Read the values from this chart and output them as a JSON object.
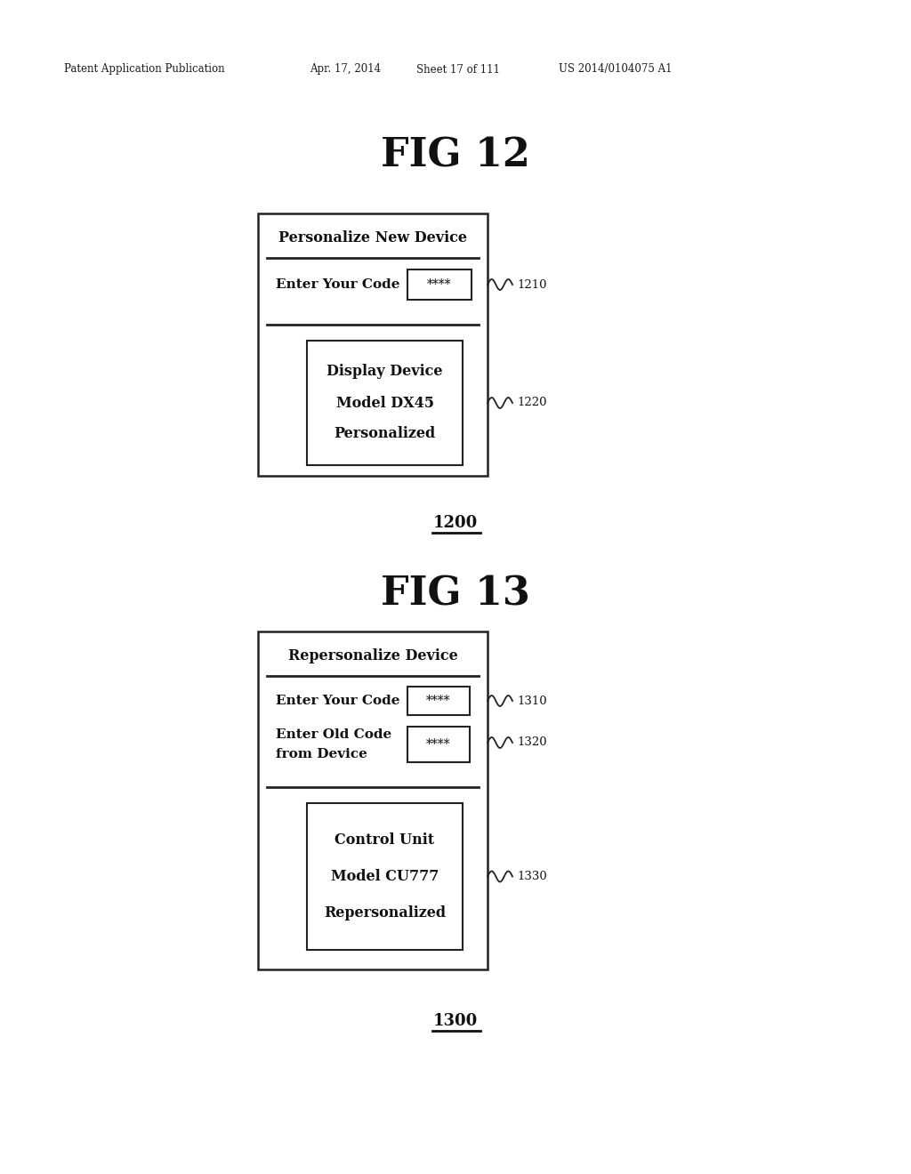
{
  "bg_color": "#ffffff",
  "header_text": "Patent Application Publication",
  "header_date": "Apr. 17, 2014",
  "header_sheet": "Sheet 17 of 111",
  "header_patent": "US 2014/0104075 A1",
  "fig12_title": "FIG 12",
  "fig12_label": "1200",
  "fig12_box_title": "Personalize New Device",
  "fig12_field1_label": "Enter Your Code",
  "fig12_field1_value": "****",
  "fig12_ref1": "1210",
  "fig12_inner_box_line1": "Display Device",
  "fig12_inner_box_line2": "Model DX45",
  "fig12_inner_box_line3": "Personalized",
  "fig12_ref2": "1220",
  "fig13_title": "FIG 13",
  "fig13_label": "1300",
  "fig13_box_title": "Repersonalize Device",
  "fig13_field1_label": "Enter Your Code",
  "fig13_field1_value": "****",
  "fig13_ref1": "1310",
  "fig13_field2_line1": "Enter Old Code",
  "fig13_field2_line2": "from Device",
  "fig13_field2_value": "****",
  "fig13_ref2": "1320",
  "fig13_inner_box_line1": "Control Unit",
  "fig13_inner_box_line2": "Model CU777",
  "fig13_inner_box_line3": "Repersonalized",
  "fig13_ref3": "1330"
}
